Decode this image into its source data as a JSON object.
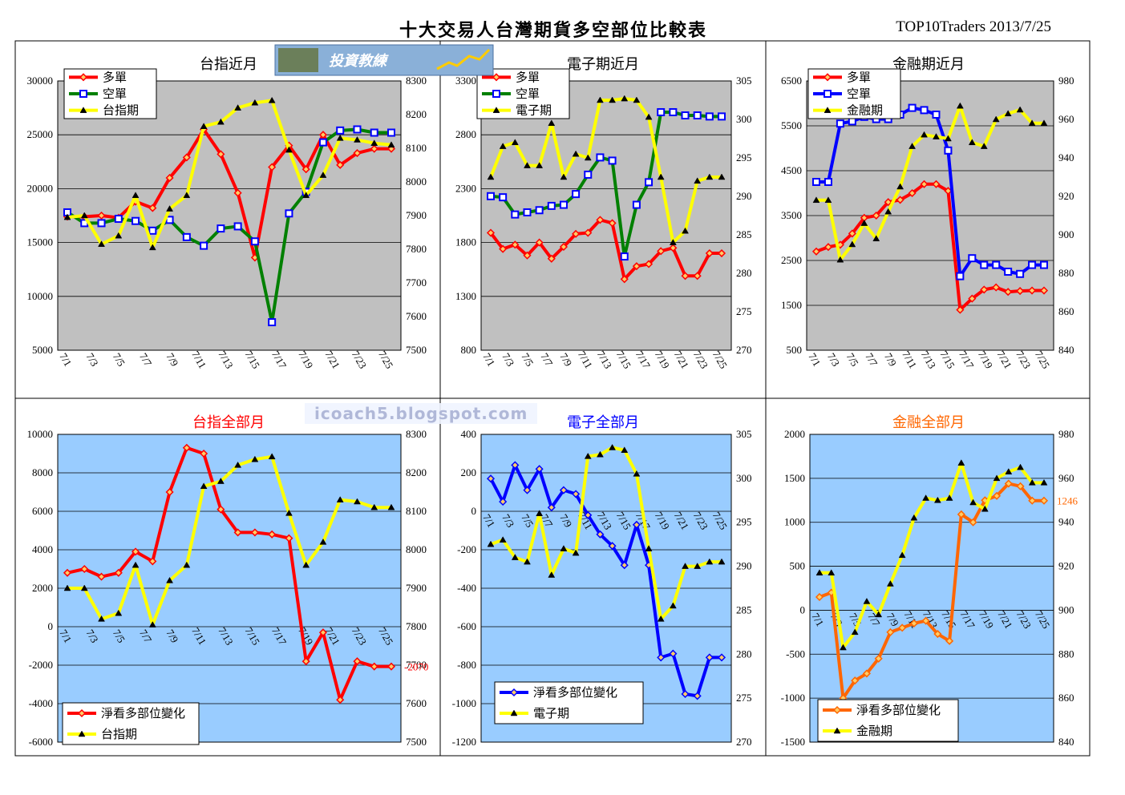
{
  "header": {
    "title": "十大交易人台灣期貨多空部位比較表",
    "top_right": "TOP10Traders 2013/7/25",
    "logo_text": "投資教練",
    "blog_url": "icoach5.blogspot.com"
  },
  "chart_data": [
    {
      "type": "line",
      "title": "台指近月",
      "title_color": "#000000",
      "categories": [
        "7/1",
        "7/2",
        "7/3",
        "7/4",
        "7/5",
        "7/8",
        "7/9",
        "7/10",
        "7/11",
        "7/12",
        "7/15",
        "7/16",
        "7/17",
        "7/18",
        "7/19",
        "7/22",
        "7/23",
        "7/24",
        "7/25",
        "7/26"
      ],
      "tick_labels": [
        "7/1",
        "7/3",
        "7/5",
        "7/7",
        "7/9",
        "7/11",
        "7/13",
        "7/15",
        "7/17",
        "7/19",
        "7/21",
        "7/23",
        "7/25"
      ],
      "plot_bg": "#c0c0c0",
      "y_left": [
        5000,
        30000,
        5000
      ],
      "y_right": [
        7500,
        8300,
        100
      ],
      "series": [
        {
          "name": "多單",
          "axis": "left",
          "color": "#ff0000",
          "marker": "diamond",
          "values": [
            17400,
            17400,
            17500,
            17300,
            18800,
            18200,
            21000,
            22900,
            25500,
            23200,
            19600,
            13600,
            22000,
            24000,
            21800,
            25000,
            22200,
            23300,
            23700,
            23700
          ]
        },
        {
          "name": "空單",
          "axis": "left",
          "color": "#008000",
          "marker": "square",
          "values": [
            17800,
            16800,
            16800,
            17200,
            17000,
            16100,
            17100,
            15500,
            14700,
            16300,
            16500,
            15100,
            7600,
            17700,
            19700,
            24300,
            25400,
            25500,
            25200,
            25200
          ]
        },
        {
          "name": "台指期",
          "axis": "right",
          "color": "#ffff00",
          "marker": "triangle",
          "values": [
            7895,
            7900,
            7815,
            7840,
            7960,
            7805,
            7920,
            7960,
            8165,
            8178,
            8220,
            8235,
            8242,
            8095,
            7960,
            8020,
            8130,
            8125,
            8115,
            8110
          ]
        }
      ]
    },
    {
      "type": "line",
      "title": "電子期近月",
      "title_color": "#000000",
      "categories": [
        "7/1",
        "7/2",
        "7/3",
        "7/4",
        "7/5",
        "7/8",
        "7/9",
        "7/10",
        "7/11",
        "7/12",
        "7/15",
        "7/16",
        "7/17",
        "7/18",
        "7/19",
        "7/22",
        "7/23",
        "7/24",
        "7/25",
        "7/26"
      ],
      "tick_labels": [
        "7/1",
        "7/3",
        "7/5",
        "7/7",
        "7/9",
        "7/11",
        "7/13",
        "7/15",
        "7/17",
        "7/19",
        "7/21",
        "7/23",
        "7/25"
      ],
      "plot_bg": "#c0c0c0",
      "y_left": [
        800,
        3300,
        500
      ],
      "y_right": [
        270,
        305,
        5
      ],
      "series": [
        {
          "name": "多單",
          "axis": "left",
          "color": "#ff0000",
          "marker": "diamond",
          "values": [
            1890,
            1740,
            1780,
            1680,
            1800,
            1650,
            1760,
            1880,
            1890,
            2010,
            1980,
            1460,
            1580,
            1600,
            1720,
            1750,
            1490,
            1490,
            1700,
            1700
          ]
        },
        {
          "name": "空單",
          "axis": "left",
          "color": "#008000",
          "marker": "square",
          "values": [
            2230,
            2220,
            2060,
            2080,
            2100,
            2140,
            2150,
            2250,
            2430,
            2590,
            2560,
            1670,
            2150,
            2360,
            3010,
            3010,
            2980,
            2980,
            2970,
            2970
          ]
        },
        {
          "name": "電子期",
          "axis": "right",
          "color": "#ffff00",
          "marker": "triangle",
          "values": [
            292.5,
            296.5,
            297,
            294,
            294,
            299.5,
            292.5,
            295.5,
            295,
            302.5,
            302.5,
            302.7,
            302.5,
            300.3,
            292.5,
            284,
            285.5,
            292,
            292.5,
            292.5
          ]
        }
      ]
    },
    {
      "type": "line",
      "title": "金融期近月",
      "title_color": "#000000",
      "categories": [
        "7/1",
        "7/2",
        "7/3",
        "7/4",
        "7/5",
        "7/8",
        "7/9",
        "7/10",
        "7/11",
        "7/12",
        "7/15",
        "7/16",
        "7/17",
        "7/18",
        "7/19",
        "7/22",
        "7/23",
        "7/24",
        "7/25",
        "7/26"
      ],
      "tick_labels": [
        "7/1",
        "7/3",
        "7/5",
        "7/7",
        "7/9",
        "7/11",
        "7/13",
        "7/15",
        "7/17",
        "7/19",
        "7/21",
        "7/23",
        "7/25"
      ],
      "plot_bg": "#c0c0c0",
      "y_left": [
        500,
        6500,
        1000
      ],
      "y_right": [
        840,
        980,
        20
      ],
      "series": [
        {
          "name": "多單",
          "axis": "left",
          "color": "#ff0000",
          "marker": "diamond",
          "values": [
            2700,
            2800,
            2850,
            3100,
            3450,
            3500,
            3800,
            3850,
            4000,
            4200,
            4200,
            4050,
            1400,
            1650,
            1850,
            1900,
            1800,
            1820,
            1830,
            1830
          ]
        },
        {
          "name": "空單",
          "axis": "left",
          "color": "#0000ff",
          "marker": "square",
          "values": [
            4250,
            4250,
            5550,
            5600,
            5700,
            5650,
            5650,
            5750,
            5900,
            5850,
            5750,
            4950,
            2150,
            2550,
            2400,
            2400,
            2250,
            2200,
            2400,
            2400
          ]
        },
        {
          "name": "金融期",
          "axis": "right",
          "color": "#ffff00",
          "marker": "triangle",
          "values": [
            918,
            918,
            887,
            895,
            906,
            898,
            912,
            925,
            946,
            952,
            951,
            950,
            967,
            948,
            946,
            960,
            963,
            965,
            958,
            958
          ]
        }
      ]
    },
    {
      "type": "line",
      "title": "台指全部月",
      "title_color": "#ff0000",
      "categories": [
        "7/1",
        "7/2",
        "7/3",
        "7/4",
        "7/5",
        "7/8",
        "7/9",
        "7/10",
        "7/11",
        "7/12",
        "7/15",
        "7/16",
        "7/17",
        "7/18",
        "7/19",
        "7/22",
        "7/23",
        "7/24",
        "7/25",
        "7/26"
      ],
      "tick_labels": [
        "7/1",
        "7/3",
        "7/5",
        "7/7",
        "7/9",
        "7/11",
        "7/13",
        "7/15",
        "7/17",
        "7/19",
        "7/21",
        "7/23",
        "7/25"
      ],
      "plot_bg": "#99ccff",
      "y_left": [
        -6000,
        10000,
        2000
      ],
      "y_right": [
        7500,
        8300,
        100
      ],
      "last_label": "-2070",
      "last_label_color": "#ff0000",
      "series": [
        {
          "name": "淨看多部位變化",
          "axis": "left",
          "color": "#ff0000",
          "marker": "diamond",
          "values": [
            2800,
            3000,
            2600,
            2800,
            3900,
            3400,
            7000,
            9300,
            9000,
            6100,
            4900,
            4900,
            4800,
            4600,
            -1800,
            -300,
            -3800,
            -1800,
            -2070,
            -2070
          ]
        },
        {
          "name": "台指期",
          "axis": "right",
          "color": "#ffff00",
          "marker": "triangle",
          "values": [
            7900,
            7900,
            7820,
            7835,
            7960,
            7805,
            7920,
            7960,
            8165,
            8178,
            8220,
            8235,
            8242,
            8095,
            7960,
            8020,
            8130,
            8125,
            8110,
            8110
          ]
        }
      ]
    },
    {
      "type": "line",
      "title": "電子全部月",
      "title_color": "#0000ff",
      "categories": [
        "7/1",
        "7/2",
        "7/3",
        "7/4",
        "7/5",
        "7/8",
        "7/9",
        "7/10",
        "7/11",
        "7/12",
        "7/15",
        "7/16",
        "7/17",
        "7/18",
        "7/19",
        "7/22",
        "7/23",
        "7/24",
        "7/25",
        "7/26"
      ],
      "tick_labels": [
        "7/1",
        "7/3",
        "7/5",
        "7/7",
        "7/9",
        "7/11",
        "7/13",
        "7/15",
        "7/17",
        "7/19",
        "7/21",
        "7/23",
        "7/25"
      ],
      "plot_bg": "#99ccff",
      "y_left": [
        -1200,
        400,
        200
      ],
      "y_right": [
        270,
        305,
        5
      ],
      "series": [
        {
          "name": "淨看多部位變化",
          "axis": "left",
          "color": "#0000ff",
          "marker": "diamond",
          "values": [
            170,
            50,
            240,
            110,
            220,
            20,
            110,
            90,
            -20,
            -120,
            -180,
            -280,
            -70,
            -280,
            -760,
            -740,
            -950,
            -960,
            -760,
            -760
          ]
        },
        {
          "name": "電子期",
          "axis": "right",
          "color": "#ffff00",
          "marker": "triangle",
          "values": [
            292.5,
            293,
            291,
            290.5,
            296,
            289,
            292,
            291.5,
            302.5,
            302.7,
            303.5,
            303.2,
            300.5,
            292,
            284,
            285.5,
            290,
            290,
            290.5,
            290.5
          ]
        }
      ]
    },
    {
      "type": "line",
      "title": "金融全部月",
      "title_color": "#ff6600",
      "categories": [
        "7/1",
        "7/2",
        "7/3",
        "7/4",
        "7/5",
        "7/8",
        "7/9",
        "7/10",
        "7/11",
        "7/12",
        "7/15",
        "7/16",
        "7/17",
        "7/18",
        "7/19",
        "7/22",
        "7/23",
        "7/24",
        "7/25",
        "7/26"
      ],
      "tick_labels": [
        "7/1",
        "7/3",
        "7/5",
        "7/7",
        "7/9",
        "7/11",
        "7/13",
        "7/15",
        "7/17",
        "7/19",
        "7/21",
        "7/23",
        "7/25"
      ],
      "plot_bg": "#99ccff",
      "y_left": [
        -1500,
        2000,
        500
      ],
      "y_right": [
        840,
        980,
        20
      ],
      "last_label": "1246",
      "last_label_color": "#ff6600",
      "series": [
        {
          "name": "淨看多部位變化",
          "axis": "left",
          "color": "#ff6600",
          "marker": "diamond",
          "values": [
            150,
            200,
            -1000,
            -800,
            -720,
            -550,
            -250,
            -200,
            -150,
            -120,
            -270,
            -350,
            1090,
            1000,
            1250,
            1300,
            1440,
            1410,
            1246,
            1246
          ]
        },
        {
          "name": "金融期",
          "axis": "right",
          "color": "#ffff00",
          "marker": "triangle",
          "values": [
            917,
            917,
            883,
            890,
            904,
            898,
            912,
            925,
            942,
            951,
            950,
            951,
            967,
            949,
            946,
            960,
            963,
            965,
            958,
            958
          ]
        }
      ]
    }
  ]
}
